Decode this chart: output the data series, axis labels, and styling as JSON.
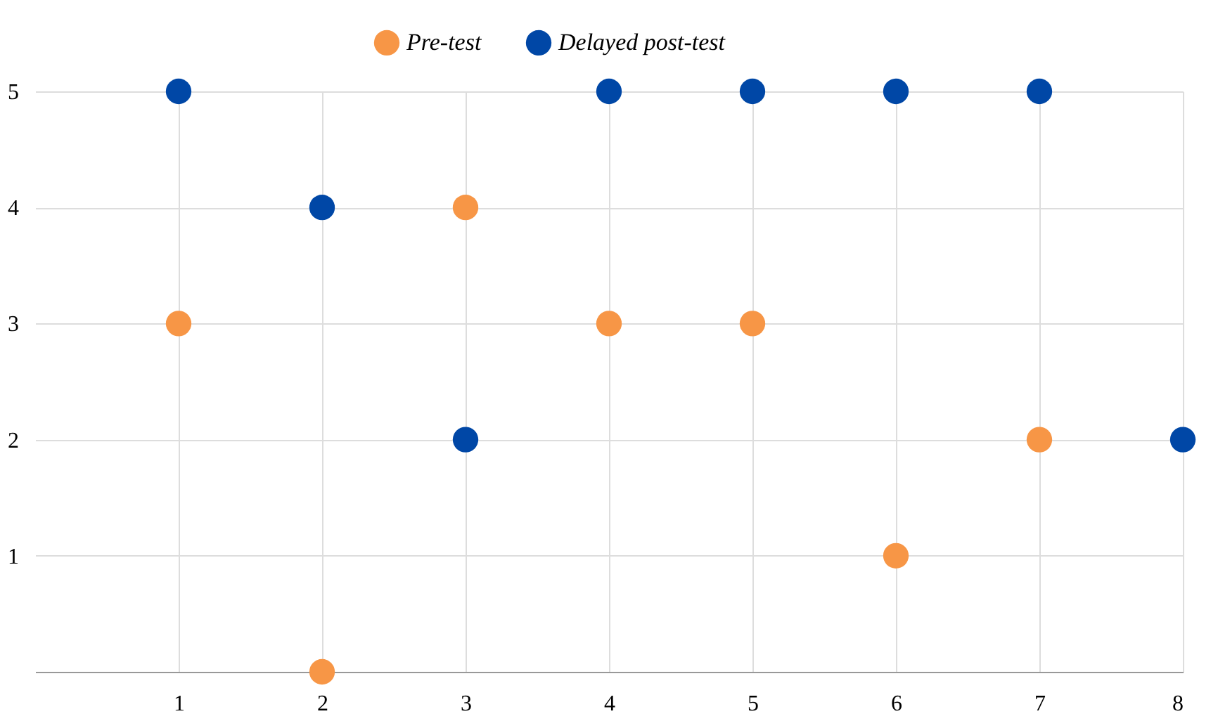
{
  "chart_data": {
    "type": "scatter",
    "x": [
      1,
      2,
      3,
      4,
      5,
      6,
      7,
      8
    ],
    "series": [
      {
        "name": "Pre-test",
        "color": "#f79646",
        "values": [
          3,
          0,
          4,
          3,
          3,
          1,
          2,
          null
        ]
      },
      {
        "name": "Delayed post-test",
        "color": "#0047a6",
        "values": [
          5,
          4,
          2,
          5,
          5,
          5,
          5,
          2
        ]
      }
    ],
    "xlim": [
      0,
      8
    ],
    "xticks": [
      1,
      2,
      3,
      4,
      5,
      6,
      7,
      8
    ],
    "ylim": [
      0,
      5
    ],
    "yticks": [
      1,
      2,
      3,
      4,
      5
    ],
    "grid": true,
    "legend": "top"
  }
}
